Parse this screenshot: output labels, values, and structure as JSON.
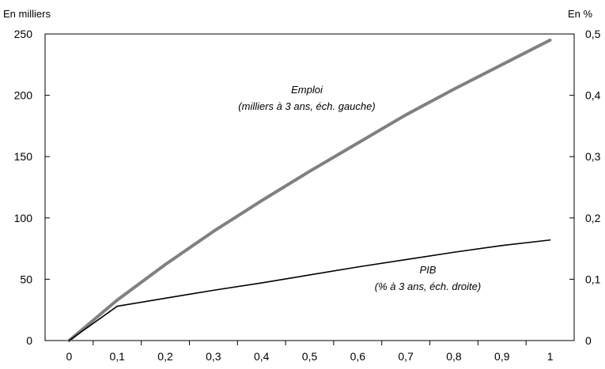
{
  "chart_data": {
    "type": "line",
    "y_left_unit": "En milliers",
    "y_right_unit": "En %",
    "x_ticks": [
      "0",
      "0,1",
      "0,2",
      "0,3",
      "0,4",
      "0,5",
      "0,6",
      "0,7",
      "0,8",
      "0,9",
      "1"
    ],
    "y_left_ticks": [
      "0",
      "50",
      "100",
      "150",
      "200",
      "250"
    ],
    "y_right_ticks": [
      "0",
      "0,1",
      "0,2",
      "0,3",
      "0,4",
      "0,5"
    ],
    "xlim": [
      0,
      1
    ],
    "ylim_left": [
      0,
      250
    ],
    "ylim_right": [
      0,
      0.5
    ],
    "grid": false,
    "series": [
      {
        "name": "Emploi",
        "axis": "left",
        "color": "#808080",
        "x": [
          0,
          0.1,
          0.2,
          0.3,
          0.4,
          0.5,
          0.6,
          0.7,
          0.8,
          0.9,
          1
        ],
        "y": [
          0,
          33,
          62,
          89,
          114,
          138,
          161,
          184,
          205,
          225,
          245
        ]
      },
      {
        "name": "PIB",
        "axis": "right",
        "color": "#000000",
        "x": [
          0,
          0.1,
          0.2,
          0.3,
          0.4,
          0.5,
          0.6,
          0.7,
          0.8,
          0.9,
          1
        ],
        "y": [
          0,
          0.056,
          0.069,
          0.082,
          0.094,
          0.107,
          0.12,
          0.132,
          0.144,
          0.155,
          0.164
        ]
      }
    ],
    "annotations": [
      {
        "target": "Emploi",
        "line1": "Emploi",
        "line2": "(milliers à 3 ans, éch. gauche)"
      },
      {
        "target": "PIB",
        "line1": "PIB",
        "line2": "(% à 3 ans, éch. droite)"
      }
    ]
  }
}
